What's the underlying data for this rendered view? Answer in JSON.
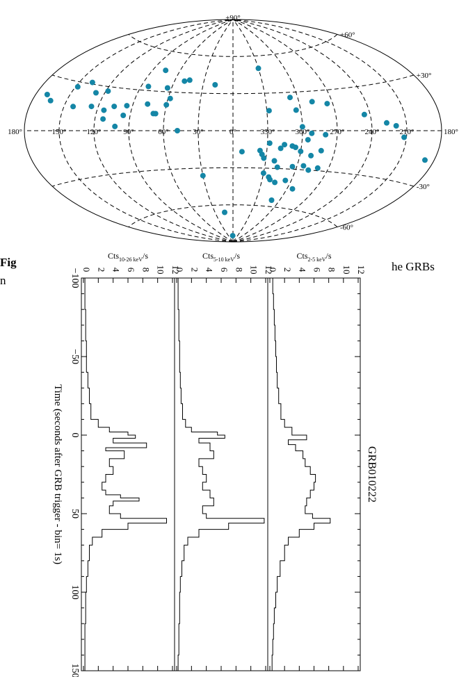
{
  "caption": {
    "left_fragment": "Fig",
    "left_fragment_2": "n",
    "right_fragment": "he GRBs"
  },
  "chart_data": [
    {
      "type": "scatter",
      "projection": "aitoff",
      "lon_tick_labels": [
        {
          "lon": 180,
          "label": "180°"
        },
        {
          "lon": 150,
          "label": "150°"
        },
        {
          "lon": 120,
          "label": "120°"
        },
        {
          "lon": 90,
          "label": "90°"
        },
        {
          "lon": 60,
          "label": "60°"
        },
        {
          "lon": 30,
          "label": "30°"
        },
        {
          "lon": 0,
          "label": "0°"
        },
        {
          "lon": -30,
          "label": "330°"
        },
        {
          "lon": -60,
          "label": "300°"
        },
        {
          "lon": -90,
          "label": "270°"
        },
        {
          "lon": -120,
          "label": "240°"
        },
        {
          "lon": -150,
          "label": "210°"
        },
        {
          "lon": -180,
          "label": "180°"
        }
      ],
      "lat_tick_labels": [
        {
          "lat": 90,
          "label": "+90°"
        },
        {
          "lat": 60,
          "label": "+60°"
        },
        {
          "lat": 30,
          "label": "+30°"
        },
        {
          "lat": -30,
          "label": "-30°"
        },
        {
          "lat": -60,
          "label": "-60°"
        }
      ],
      "grid": true,
      "point_color": "#1486a6",
      "points": [
        [
          170,
          20
        ],
        [
          164,
          17
        ],
        [
          148,
          27
        ],
        [
          138,
          31
        ],
        [
          142,
          15
        ],
        [
          128,
          25
        ],
        [
          126,
          16
        ],
        [
          118,
          27
        ],
        [
          114,
          14
        ],
        [
          106,
          17
        ],
        [
          113,
          8
        ],
        [
          102,
          3
        ],
        [
          96,
          11
        ],
        [
          95,
          18
        ],
        [
          76,
          46
        ],
        [
          83,
          33
        ],
        [
          64,
          33
        ],
        [
          77,
          20
        ],
        [
          70,
          13
        ],
        [
          68,
          13
        ],
        [
          60,
          20
        ],
        [
          58,
          25
        ],
        [
          50,
          39
        ],
        [
          45,
          40
        ],
        [
          48,
          0
        ],
        [
          18,
          37
        ],
        [
          -30,
          50
        ],
        [
          -32,
          16
        ],
        [
          -53,
          26
        ],
        [
          -56,
          16
        ],
        [
          -60,
          3
        ],
        [
          -72,
          22
        ],
        [
          -85,
          20
        ],
        [
          -115,
          11
        ],
        [
          -133,
          5
        ],
        [
          -141,
          3
        ],
        [
          -172,
          -16
        ],
        [
          -148,
          -4
        ],
        [
          -80,
          -3
        ],
        [
          -68,
          -2
        ],
        [
          -65,
          -7
        ],
        [
          -55,
          -13
        ],
        [
          -52,
          -12
        ],
        [
          -45,
          -11
        ],
        [
          -42,
          -14
        ],
        [
          -60,
          -16
        ],
        [
          -70,
          -19
        ],
        [
          -78,
          -15
        ],
        [
          -32,
          -10
        ],
        [
          -8,
          -17
        ],
        [
          -24,
          -16
        ],
        [
          -28,
          -22
        ],
        [
          -26,
          -19
        ],
        [
          -38,
          -24
        ],
        [
          -42,
          -29
        ],
        [
          -56,
          -28
        ],
        [
          -66,
          -27
        ],
        [
          -72,
          -30
        ],
        [
          -80,
          -28
        ],
        [
          -30,
          -34
        ],
        [
          -36,
          -37
        ],
        [
          -38,
          -39
        ],
        [
          -44,
          -41
        ],
        [
          -54,
          -39
        ],
        [
          -66,
          -45
        ],
        [
          -50,
          -55
        ],
        [
          30,
          -36
        ],
        [
          14,
          -66
        ],
        [
          2,
          -85
        ]
      ]
    },
    {
      "type": "line",
      "title": "GRB010222",
      "xlabel": "Time (seconds after GRB trigger - bin= 1s)",
      "xlim": [
        -100,
        150
      ],
      "x_ticks": [
        -100,
        -50,
        0,
        50,
        100,
        150
      ],
      "y_ticks": [
        0,
        2,
        4,
        6,
        8,
        10,
        12
      ],
      "ylim": [
        0,
        12
      ],
      "series": [
        {
          "name": "Cts2-5 keV/s",
          "label_main": "Cts",
          "label_sub": "2-5 keV",
          "label_unit": "/s",
          "points": [
            [
              -100,
              0.4
            ],
            [
              -90,
              0.5
            ],
            [
              -80,
              0.6
            ],
            [
              -70,
              0.7
            ],
            [
              -60,
              0.8
            ],
            [
              -50,
              0.9
            ],
            [
              -40,
              1.0
            ],
            [
              -30,
              1.2
            ],
            [
              -20,
              1.5
            ],
            [
              -10,
              2.0
            ],
            [
              -5,
              3.0
            ],
            [
              0,
              5.0
            ],
            [
              3,
              2.5
            ],
            [
              6,
              3.5
            ],
            [
              10,
              4.5
            ],
            [
              15,
              4.8
            ],
            [
              20,
              5.5
            ],
            [
              25,
              6.2
            ],
            [
              30,
              6.0
            ],
            [
              35,
              5.5
            ],
            [
              40,
              5.0
            ],
            [
              45,
              4.8
            ],
            [
              50,
              5.8
            ],
            [
              53,
              8.2
            ],
            [
              56,
              6.0
            ],
            [
              60,
              4.0
            ],
            [
              65,
              2.5
            ],
            [
              70,
              2.0
            ],
            [
              80,
              1.4
            ],
            [
              90,
              1.0
            ],
            [
              100,
              0.8
            ],
            [
              110,
              0.6
            ],
            [
              120,
              0.5
            ],
            [
              130,
              0.4
            ],
            [
              140,
              0.3
            ],
            [
              150,
              0.2
            ]
          ]
        },
        {
          "name": "Cts5-10 keV/s",
          "label_main": "Cts",
          "label_sub": "5-10 keV",
          "label_unit": "/s",
          "points": [
            [
              -100,
              0.2
            ],
            [
              -80,
              0.3
            ],
            [
              -60,
              0.4
            ],
            [
              -40,
              0.5
            ],
            [
              -30,
              0.6
            ],
            [
              -20,
              0.8
            ],
            [
              -10,
              1.2
            ],
            [
              -5,
              2.0
            ],
            [
              -2,
              5.5
            ],
            [
              0,
              6.5
            ],
            [
              2,
              3.0
            ],
            [
              5,
              4.5
            ],
            [
              10,
              5.0
            ],
            [
              15,
              3.0
            ],
            [
              20,
              3.5
            ],
            [
              25,
              4.0
            ],
            [
              30,
              3.5
            ],
            [
              35,
              4.5
            ],
            [
              40,
              5.0
            ],
            [
              45,
              3.5
            ],
            [
              50,
              4.0
            ],
            [
              53,
              11.8
            ],
            [
              56,
              7.0
            ],
            [
              60,
              3.0
            ],
            [
              65,
              1.5
            ],
            [
              70,
              1.0
            ],
            [
              80,
              0.7
            ],
            [
              90,
              0.5
            ],
            [
              100,
              0.4
            ],
            [
              120,
              0.3
            ],
            [
              140,
              0.2
            ],
            [
              150,
              0.2
            ]
          ]
        },
        {
          "name": "Cts10-26 keV/s",
          "label_main": "Cts",
          "label_sub": "10-26 keV",
          "label_unit": "/s",
          "points": [
            [
              -100,
              0.2
            ],
            [
              -80,
              0.3
            ],
            [
              -60,
              0.4
            ],
            [
              -40,
              0.6
            ],
            [
              -30,
              0.8
            ],
            [
              -20,
              1.0
            ],
            [
              -10,
              2.0
            ],
            [
              -5,
              3.5
            ],
            [
              -2,
              6.0
            ],
            [
              0,
              7.0
            ],
            [
              2,
              4.0
            ],
            [
              5,
              8.5
            ],
            [
              8,
              3.0
            ],
            [
              10,
              5.5
            ],
            [
              15,
              3.5
            ],
            [
              20,
              4.0
            ],
            [
              25,
              3.0
            ],
            [
              30,
              2.5
            ],
            [
              35,
              3.0
            ],
            [
              38,
              5.0
            ],
            [
              40,
              7.5
            ],
            [
              42,
              4.0
            ],
            [
              45,
              3.5
            ],
            [
              50,
              5.0
            ],
            [
              53,
              11.2
            ],
            [
              56,
              6.0
            ],
            [
              60,
              2.5
            ],
            [
              65,
              1.2
            ],
            [
              70,
              0.8
            ],
            [
              80,
              0.6
            ],
            [
              90,
              0.4
            ],
            [
              100,
              0.3
            ],
            [
              120,
              0.2
            ],
            [
              140,
              0.2
            ],
            [
              150,
              0.1
            ]
          ]
        }
      ]
    }
  ]
}
